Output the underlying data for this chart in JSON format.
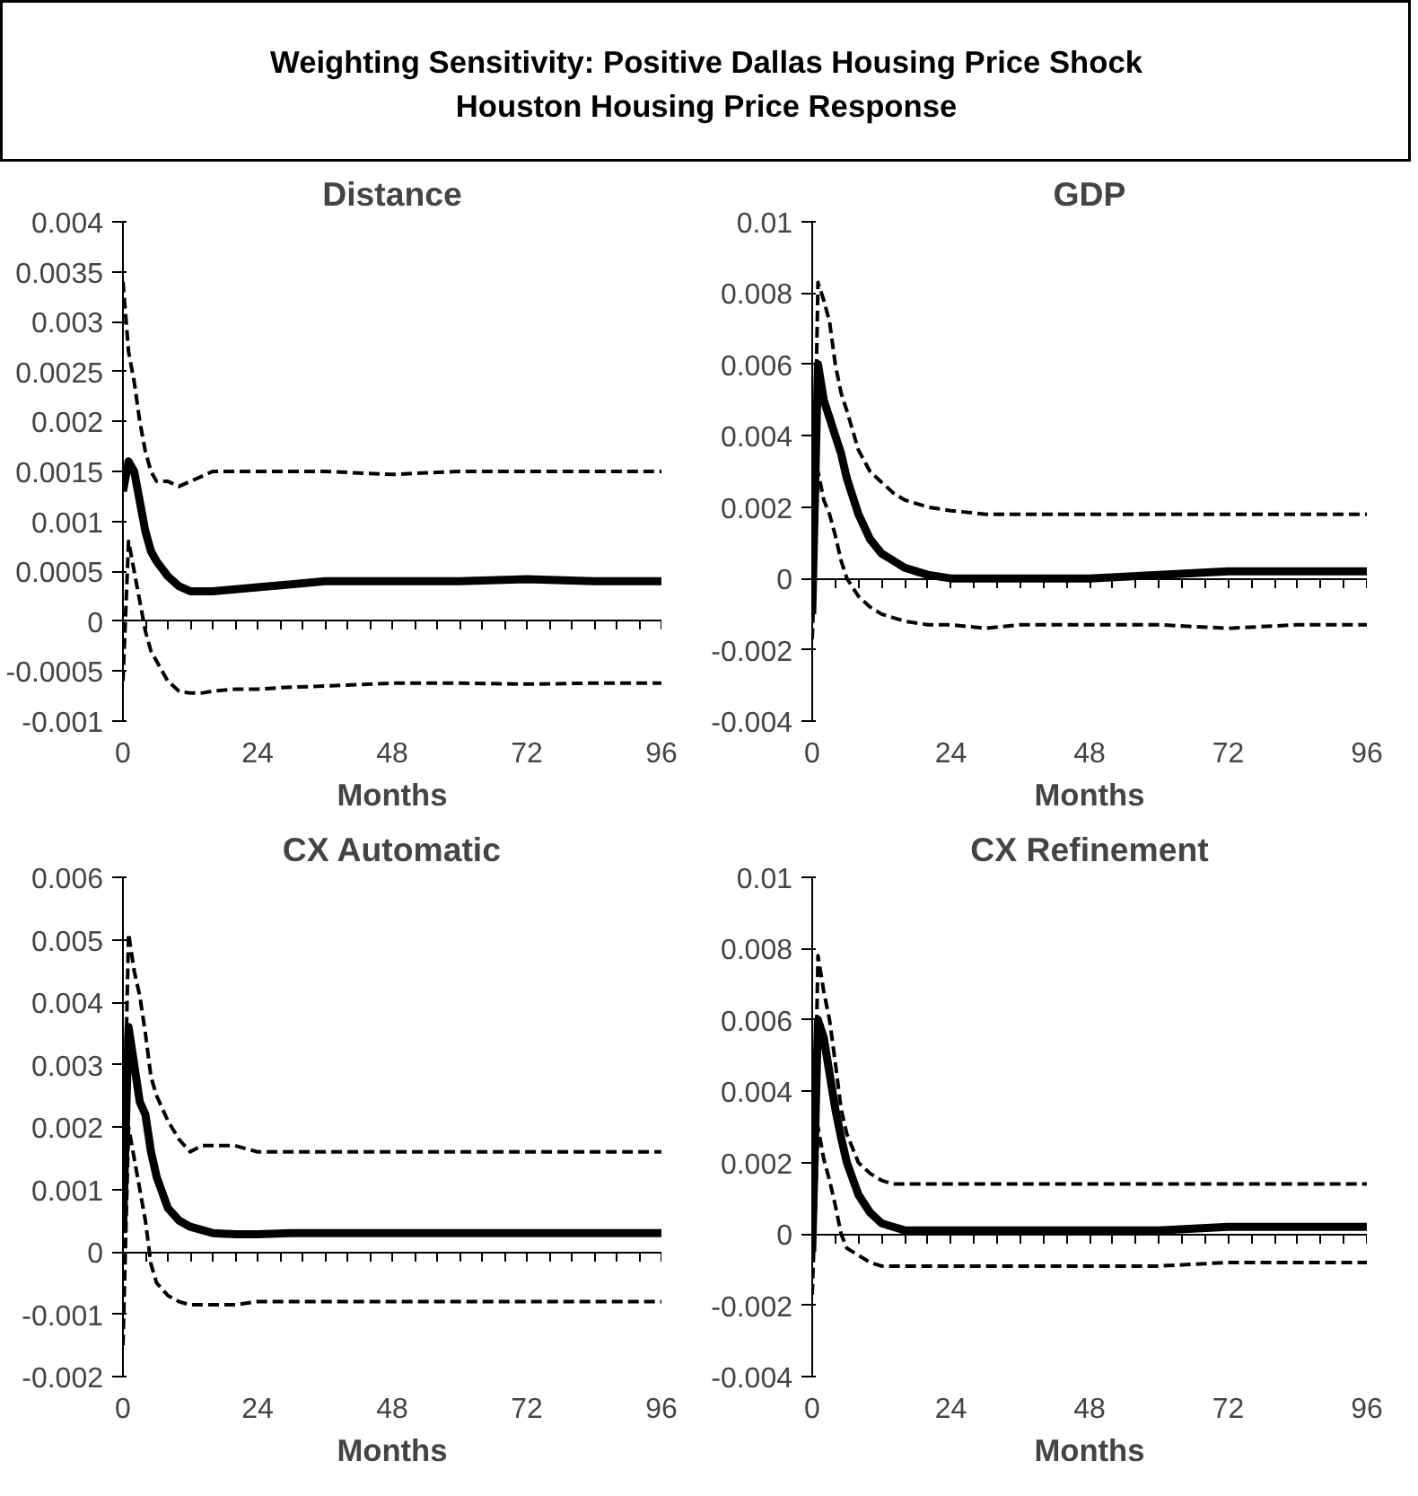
{
  "chart_data": [
    {
      "type": "other",
      "title": "Weighting Sensitivity: Positive Dallas Housing Price Shock",
      "subtitle": "Houston Housing Price Response"
    },
    {
      "type": "line",
      "title": "Distance",
      "xlabel": "Months",
      "ref_lines": [
        {
          "axis": "y",
          "value": 0
        }
      ],
      "x": [
        0,
        1,
        2,
        3,
        4,
        5,
        6,
        8,
        10,
        12,
        14,
        16,
        20,
        24,
        30,
        36,
        48,
        60,
        72,
        84,
        96
      ],
      "xlim": [
        0,
        96
      ],
      "xticks": [
        0,
        24,
        48,
        72,
        96
      ],
      "ylim": [
        -0.001,
        0.004
      ],
      "yticks": [
        {
          "value": -0.001,
          "label": "-0.001"
        },
        {
          "value": -0.0005,
          "label": "-0.0005"
        },
        0,
        {
          "value": 0.0005,
          "label": "0.0005"
        },
        {
          "value": 0.001,
          "label": "0.001"
        },
        {
          "value": 0.0015,
          "label": "0.0015"
        },
        {
          "value": 0.002,
          "label": "0.002"
        },
        {
          "value": 0.0025,
          "label": "0.0025"
        },
        {
          "value": 0.003,
          "label": "0.003"
        },
        {
          "value": 0.0035,
          "label": "0.0035"
        },
        {
          "value": 0.004,
          "label": "0.004"
        }
      ],
      "grid": false,
      "series": [
        {
          "color": "#000000",
          "line_style": "solid",
          "values": [
            0.0013,
            0.0016,
            0.0015,
            0.0012,
            0.0009,
            0.0007,
            0.0006,
            0.00045,
            0.00035,
            0.0003,
            0.0003,
            0.0003,
            0.00032,
            0.00034,
            0.00037,
            0.0004,
            0.0004,
            0.0004,
            0.00042,
            0.0004,
            0.0004
          ]
        },
        {
          "color": "#000000",
          "line_style": "dashed",
          "values": [
            0.0034,
            0.0027,
            0.0024,
            0.002,
            0.0017,
            0.0015,
            0.0014,
            0.0014,
            0.00135,
            0.0014,
            0.00145,
            0.0015,
            0.0015,
            0.0015,
            0.0015,
            0.0015,
            0.00147,
            0.0015,
            0.0015,
            0.0015,
            0.0015
          ]
        },
        {
          "color": "#000000",
          "line_style": "dashed",
          "values": [
            -0.0006,
            0.0008,
            0.0005,
            0.0002,
            -0.0001,
            -0.0003,
            -0.0004,
            -0.0006,
            -0.0007,
            -0.00072,
            -0.00072,
            -0.0007,
            -0.00068,
            -0.00068,
            -0.00066,
            -0.00065,
            -0.00062,
            -0.00062,
            -0.00063,
            -0.00062,
            -0.00062
          ]
        }
      ]
    },
    {
      "type": "line",
      "title": "GDP",
      "xlabel": "Months",
      "ref_lines": [
        {
          "axis": "y",
          "value": 0
        }
      ],
      "x": [
        0,
        1,
        2,
        3,
        4,
        5,
        6,
        8,
        10,
        12,
        14,
        16,
        20,
        24,
        30,
        36,
        48,
        60,
        72,
        84,
        96
      ],
      "xlim": [
        0,
        96
      ],
      "xticks": [
        0,
        24,
        48,
        72,
        96
      ],
      "ylim": [
        -0.004,
        0.01
      ],
      "yticks": [
        {
          "value": -0.004,
          "label": "-0.004"
        },
        {
          "value": -0.002,
          "label": "-0.002"
        },
        0,
        {
          "value": 0.002,
          "label": "0.002"
        },
        {
          "value": 0.004,
          "label": "0.004"
        },
        {
          "value": 0.006,
          "label": "0.006"
        },
        {
          "value": 0.008,
          "label": "0.008"
        },
        {
          "value": 0.01,
          "label": "0.01"
        }
      ],
      "grid": false,
      "series": [
        {
          "color": "#000000",
          "line_style": "solid",
          "values": [
            -0.001,
            0.006,
            0.005,
            0.0045,
            0.004,
            0.0035,
            0.0028,
            0.0018,
            0.0011,
            0.0007,
            0.0005,
            0.0003,
            0.0001,
            0.0,
            0.0,
            0.0,
            0.0,
            0.0001,
            0.0002,
            0.0002,
            0.0002
          ]
        },
        {
          "color": "#000000",
          "line_style": "dashed",
          "values": [
            -0.0005,
            0.0083,
            0.0078,
            0.0072,
            0.006,
            0.0052,
            0.0047,
            0.0036,
            0.003,
            0.0027,
            0.0024,
            0.0022,
            0.002,
            0.0019,
            0.0018,
            0.0018,
            0.0018,
            0.0018,
            0.0018,
            0.0018,
            0.0018
          ]
        },
        {
          "color": "#000000",
          "line_style": "dashed",
          "values": [
            -0.0017,
            0.003,
            0.0022,
            0.0018,
            0.0012,
            0.0005,
            0.0,
            -0.0005,
            -0.0008,
            -0.001,
            -0.0011,
            -0.0012,
            -0.0013,
            -0.0013,
            -0.0014,
            -0.0013,
            -0.0013,
            -0.0013,
            -0.0014,
            -0.0013,
            -0.0013
          ]
        }
      ]
    },
    {
      "type": "line",
      "title": "CX Automatic",
      "xlabel": "Months",
      "ref_lines": [
        {
          "axis": "y",
          "value": 0
        }
      ],
      "x": [
        0,
        1,
        2,
        3,
        4,
        5,
        6,
        8,
        10,
        12,
        14,
        16,
        20,
        24,
        30,
        36,
        48,
        60,
        72,
        84,
        96
      ],
      "xlim": [
        0,
        96
      ],
      "xticks": [
        0,
        24,
        48,
        72,
        96
      ],
      "ylim": [
        -0.002,
        0.006
      ],
      "yticks": [
        {
          "value": -0.002,
          "label": "-0.002"
        },
        {
          "value": -0.001,
          "label": "-0.001"
        },
        0,
        {
          "value": 0.001,
          "label": "0.001"
        },
        {
          "value": 0.002,
          "label": "0.002"
        },
        {
          "value": 0.003,
          "label": "0.003"
        },
        {
          "value": 0.004,
          "label": "0.004"
        },
        {
          "value": 0.005,
          "label": "0.005"
        },
        {
          "value": 0.006,
          "label": "0.006"
        }
      ],
      "grid": false,
      "series": [
        {
          "color": "#000000",
          "line_style": "solid",
          "values": [
            0.0003,
            0.0036,
            0.003,
            0.0024,
            0.0022,
            0.0016,
            0.0012,
            0.0007,
            0.0005,
            0.0004,
            0.00035,
            0.0003,
            0.00028,
            0.00028,
            0.0003,
            0.0003,
            0.0003,
            0.0003,
            0.0003,
            0.0003,
            0.0003
          ]
        },
        {
          "color": "#000000",
          "line_style": "dashed",
          "values": [
            0.001,
            0.0051,
            0.0045,
            0.0041,
            0.0035,
            0.0028,
            0.0025,
            0.0021,
            0.0018,
            0.0016,
            0.0017,
            0.0017,
            0.0017,
            0.0016,
            0.0016,
            0.0016,
            0.0016,
            0.0016,
            0.0016,
            0.0016,
            0.0016
          ]
        },
        {
          "color": "#000000",
          "line_style": "dashed",
          "values": [
            -0.0015,
            0.002,
            0.0015,
            0.001,
            0.0005,
            -0.0002,
            -0.0005,
            -0.0007,
            -0.0008,
            -0.00085,
            -0.00085,
            -0.00085,
            -0.00085,
            -0.0008,
            -0.0008,
            -0.0008,
            -0.0008,
            -0.0008,
            -0.0008,
            -0.0008,
            -0.0008
          ]
        }
      ]
    },
    {
      "type": "line",
      "title": "CX Refinement",
      "xlabel": "Months",
      "ref_lines": [
        {
          "axis": "y",
          "value": 0
        }
      ],
      "x": [
        0,
        1,
        2,
        3,
        4,
        5,
        6,
        8,
        10,
        12,
        14,
        16,
        20,
        24,
        30,
        36,
        48,
        60,
        72,
        84,
        96
      ],
      "xlim": [
        0,
        96
      ],
      "xticks": [
        0,
        24,
        48,
        72,
        96
      ],
      "ylim": [
        -0.004,
        0.01
      ],
      "yticks": [
        {
          "value": -0.004,
          "label": "-0.004"
        },
        {
          "value": -0.002,
          "label": "-0.002"
        },
        0,
        {
          "value": 0.002,
          "label": "0.002"
        },
        {
          "value": 0.004,
          "label": "0.004"
        },
        {
          "value": 0.006,
          "label": "0.006"
        },
        {
          "value": 0.008,
          "label": "0.008"
        },
        {
          "value": 0.01,
          "label": "0.01"
        }
      ],
      "grid": false,
      "series": [
        {
          "color": "#000000",
          "line_style": "solid",
          "values": [
            -0.0005,
            0.006,
            0.0055,
            0.0045,
            0.0035,
            0.0027,
            0.002,
            0.0011,
            0.0006,
            0.0003,
            0.0002,
            0.0001,
            0.0001,
            0.0001,
            0.0001,
            0.0001,
            0.0001,
            0.0001,
            0.0002,
            0.0002,
            0.0002
          ]
        },
        {
          "color": "#000000",
          "line_style": "dashed",
          "values": [
            -0.0005,
            0.0078,
            0.0068,
            0.006,
            0.0048,
            0.0035,
            0.0028,
            0.002,
            0.0017,
            0.0015,
            0.0014,
            0.0014,
            0.0014,
            0.0014,
            0.0014,
            0.0014,
            0.0014,
            0.0014,
            0.0014,
            0.0014,
            0.0014
          ]
        },
        {
          "color": "#000000",
          "line_style": "dashed",
          "values": [
            -0.0017,
            0.003,
            0.0021,
            0.0015,
            0.0008,
            0.0,
            -0.0004,
            -0.0006,
            -0.0008,
            -0.0009,
            -0.0009,
            -0.0009,
            -0.0009,
            -0.0009,
            -0.0009,
            -0.0009,
            -0.0009,
            -0.0009,
            -0.0008,
            -0.0008,
            -0.0008
          ]
        }
      ]
    }
  ]
}
